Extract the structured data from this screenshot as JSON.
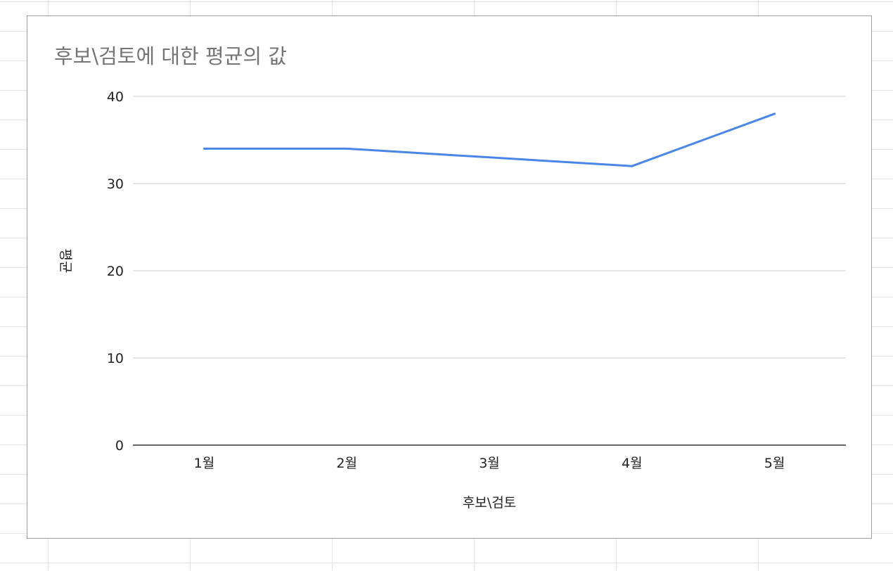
{
  "chart_data": {
    "type": "line",
    "title": "후보\\검토에 대한 평균의 값",
    "xlabel": "후보\\검토",
    "ylabel": "평균",
    "categories": [
      "1월",
      "2월",
      "3월",
      "4월",
      "5월"
    ],
    "series": [
      {
        "values": [
          34,
          34,
          33,
          32,
          38
        ],
        "color": "#4a86e8"
      }
    ],
    "ylim": [
      0,
      40
    ],
    "yticks": [
      0,
      10,
      20,
      30,
      40
    ],
    "grid": true,
    "legend": "none"
  }
}
